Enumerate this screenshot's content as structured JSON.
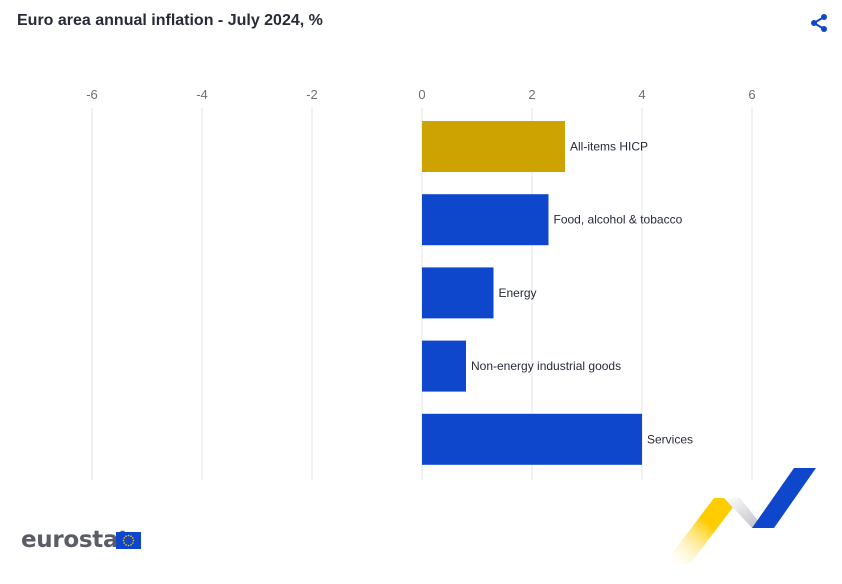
{
  "header": {
    "title": "Euro area annual inflation - July 2024, %",
    "share_icon": "share-icon"
  },
  "branding": {
    "logo_text": "eurostat",
    "flag_icon": "eu-flag-icon",
    "ribbon_colors": [
      "#ffcc00",
      "#c8cacf",
      "#0e47cb"
    ]
  },
  "chart_data": {
    "type": "bar",
    "orientation": "horizontal",
    "title": "Euro area annual inflation - July 2024, %",
    "xlabel": "",
    "ylabel": "",
    "xlim": [
      -6,
      6
    ],
    "ticks": [
      -6,
      -4,
      -2,
      0,
      2,
      4,
      6
    ],
    "grid": true,
    "categories": [
      "All-items HICP",
      "Food, alcohol & tobacco",
      "Energy",
      "Non-energy industrial goods",
      "Services"
    ],
    "values": [
      2.6,
      2.3,
      1.3,
      0.8,
      4.0
    ],
    "colors": [
      "#cca300",
      "#0e47cb",
      "#0e47cb",
      "#0e47cb",
      "#0e47cb"
    ]
  }
}
